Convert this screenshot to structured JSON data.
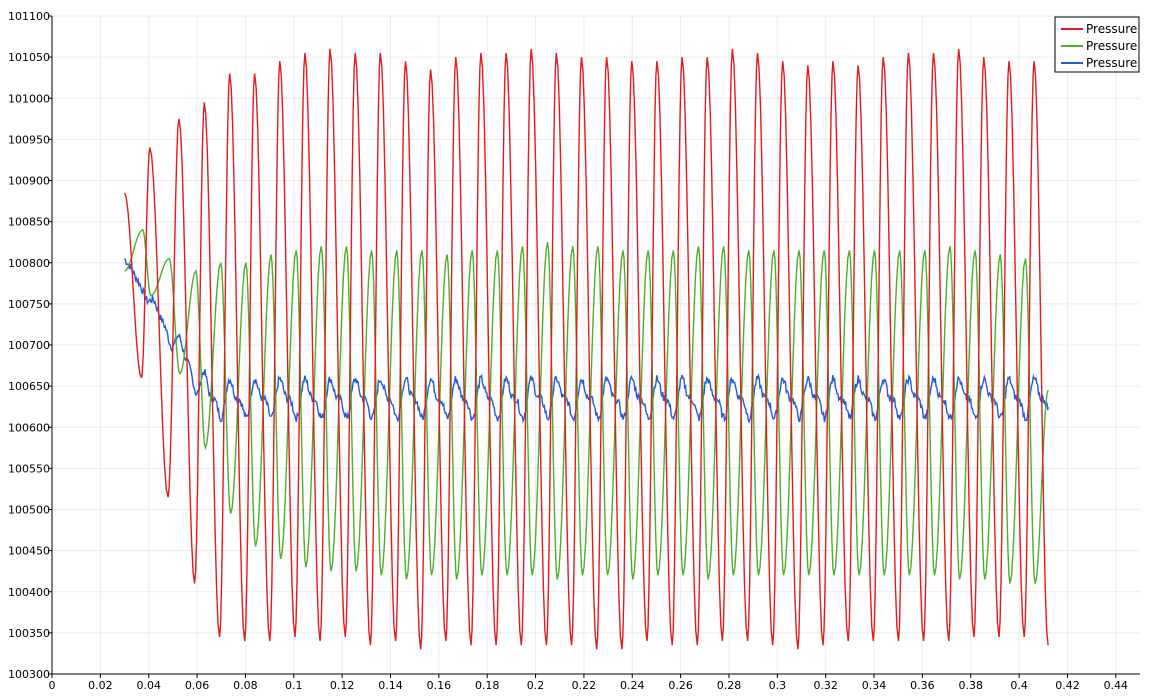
{
  "chart_data": {
    "type": "line",
    "title": "",
    "xlabel": "",
    "ylabel": "",
    "xlim": [
      0,
      0.45
    ],
    "ylim": [
      100300,
      101100
    ],
    "x_ticks": [
      "0",
      "0.02",
      "0.04",
      "0.06",
      "0.08",
      "0.1",
      "0.12",
      "0.14",
      "0.16",
      "0.18",
      "0.2",
      "0.22",
      "0.24",
      "0.26",
      "0.28",
      "0.3",
      "0.32",
      "0.34",
      "0.36",
      "0.38",
      "0.4",
      "0.42",
      "0.44"
    ],
    "y_ticks": [
      "100300",
      "100350",
      "100400",
      "100450",
      "100500",
      "100550",
      "100600",
      "100650",
      "100700",
      "100750",
      "100800",
      "100850",
      "100900",
      "100950",
      "101000",
      "101050",
      "101100"
    ],
    "grid": true,
    "legend_position": "top-right",
    "x_range_data": [
      0.03,
      0.412
    ],
    "oscillation_period": 0.0104,
    "series": [
      {
        "name": "Pressure",
        "color": "#e41a1c",
        "start_value": 100885,
        "steady_mean": 100695,
        "steady_amplitude": 360,
        "peaks_x": [
          0.0405,
          0.0525,
          0.063,
          0.0735,
          0.0838,
          0.0942,
          0.1046,
          0.115,
          0.1254,
          0.1358,
          0.1462,
          0.1566,
          0.167,
          0.1774,
          0.1878,
          0.1982,
          0.2086,
          0.219,
          0.2294,
          0.2398,
          0.2502,
          0.2606,
          0.271,
          0.2814,
          0.2918,
          0.3022,
          0.3126,
          0.323,
          0.3334,
          0.3438,
          0.3542,
          0.3646,
          0.375,
          0.3854,
          0.3958,
          0.4062
        ],
        "peaks_y": [
          100940,
          100975,
          100995,
          101030,
          101030,
          101045,
          101055,
          101060,
          101055,
          101055,
          101045,
          101035,
          101050,
          101055,
          101055,
          101060,
          101055,
          101050,
          101050,
          101045,
          101045,
          101050,
          101050,
          101060,
          101055,
          101045,
          101040,
          101045,
          101040,
          101050,
          101055,
          101055,
          101060,
          101050,
          101045,
          101045
        ],
        "troughs_x": [
          0.037,
          0.048,
          0.059,
          0.0693,
          0.0797,
          0.0901,
          0.1005,
          0.1109,
          0.1213,
          0.1317,
          0.1421,
          0.1525,
          0.1629,
          0.1733,
          0.1837,
          0.1941,
          0.2045,
          0.2149,
          0.2253,
          0.2357,
          0.2461,
          0.2565,
          0.2669,
          0.2773,
          0.2877,
          0.2981,
          0.3085,
          0.3189,
          0.3293,
          0.3397,
          0.3501,
          0.3605,
          0.3709,
          0.3813,
          0.3917,
          0.4021
        ],
        "troughs_y": [
          100660,
          100515,
          100410,
          100345,
          100340,
          100340,
          100345,
          100340,
          100345,
          100335,
          100340,
          100330,
          100340,
          100335,
          100335,
          100335,
          100335,
          100335,
          100330,
          100330,
          100340,
          100335,
          100335,
          100340,
          100340,
          100335,
          100330,
          100335,
          100340,
          100340,
          100340,
          100340,
          100340,
          100345,
          100345,
          100345
        ],
        "end_value": 100335
      },
      {
        "name": "Pressure",
        "color": "#4daf2a",
        "start_value": 100790,
        "steady_mean": 100620,
        "steady_amplitude": 195,
        "peaks_y": [
          100840,
          100805,
          100790,
          100800,
          100800,
          100810,
          100815,
          100820,
          100820,
          100815,
          100815,
          100815,
          100810,
          100815,
          100815,
          100820,
          100825,
          100820,
          100820,
          100815,
          100815,
          100815,
          100820,
          100820,
          100815,
          100815,
          100815,
          100815,
          100815,
          100815,
          100815,
          100815,
          100820,
          100815,
          100810,
          100805
        ],
        "troughs_y": [
          100760,
          100665,
          100575,
          100495,
          100455,
          100440,
          100430,
          100425,
          100425,
          100420,
          100415,
          100420,
          100415,
          100420,
          100420,
          100420,
          100415,
          100420,
          100420,
          100415,
          100420,
          100420,
          100415,
          100420,
          100420,
          100420,
          100420,
          100420,
          100420,
          100420,
          100420,
          100420,
          100415,
          100415,
          100410,
          100410
        ],
        "end_value": 100645
      },
      {
        "name": "Pressure",
        "color": "#1f5ce0",
        "start_value": 100805,
        "steady_mean": 100635,
        "steady_amplitude": 25,
        "steady_reached_x": 0.065,
        "end_value": 100625
      }
    ]
  }
}
